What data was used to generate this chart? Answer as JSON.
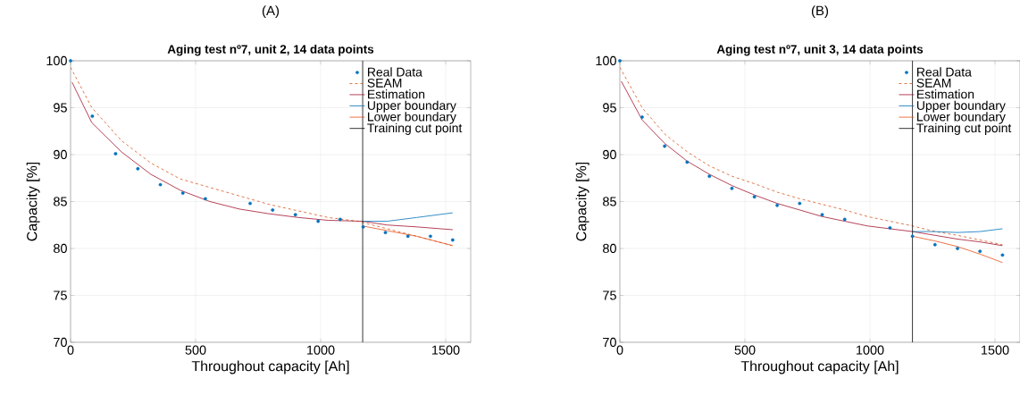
{
  "chart_data": [
    {
      "type": "line",
      "subtitle": "(A)",
      "title": "Aging test nº7, unit 2, 14 data points",
      "xlabel": "Throughout capacity [Ah]",
      "ylabel": "Capacity [%]",
      "xlim": [
        0,
        1600
      ],
      "ylim": [
        70,
        100
      ],
      "xticks": [
        0,
        500,
        1000,
        1500
      ],
      "yticks": [
        70,
        75,
        80,
        85,
        90,
        95,
        100
      ],
      "grid": true,
      "legend": "top right",
      "series": [
        {
          "name": "Real Data",
          "type": "scatter",
          "marker": "circle",
          "color": "#0072bd",
          "x": [
            0,
            87,
            180,
            269,
            359,
            449,
            539,
            718,
            808,
            899,
            990,
            1078,
            1170,
            1259,
            1349,
            1439,
            1528
          ],
          "values": [
            100,
            94.1,
            90.1,
            88.5,
            86.8,
            85.9,
            85.3,
            84.8,
            84.1,
            83.6,
            82.9,
            83.1,
            82.3,
            81.7,
            81.3,
            81.3,
            80.9
          ]
        },
        {
          "name": "SEAM",
          "line_style": "dashed",
          "color": "#d95319",
          "x": [
            0,
            85,
            203,
            321,
            439,
            557,
            675,
            793,
            911,
            1030,
            1148,
            1266,
            1384,
            1528
          ],
          "values": [
            99.3,
            95.0,
            91.5,
            89.1,
            87.4,
            86.5,
            85.6,
            84.7,
            84.0,
            83.3,
            82.9,
            82.1,
            81.3,
            80.3
          ]
        },
        {
          "name": "Estimation",
          "line_style": "solid",
          "color": "#a2142f",
          "x": [
            6,
            85,
            203,
            321,
            439,
            557,
            675,
            793,
            911,
            1030,
            1168,
            1266,
            1384,
            1528
          ],
          "values": [
            97.7,
            93.4,
            90.3,
            87.9,
            86.2,
            85.0,
            84.2,
            83.7,
            83.3,
            83.0,
            82.9,
            82.5,
            82.3,
            82.0
          ]
        },
        {
          "name": "Upper boundary",
          "line_style": "solid",
          "color": "#0072bd",
          "x": [
            1168,
            1266,
            1384,
            1528
          ],
          "values": [
            82.9,
            82.9,
            83.3,
            83.8
          ]
        },
        {
          "name": "Lower boundary",
          "line_style": "solid",
          "color": "#e8501a",
          "x": [
            1168,
            1266,
            1384,
            1528
          ],
          "values": [
            82.4,
            81.9,
            81.3,
            80.3
          ]
        }
      ],
      "ref_lines": [
        {
          "axis": "x",
          "value": 1168,
          "label": "Training cut point",
          "color": "#000000"
        }
      ]
    },
    {
      "type": "line",
      "subtitle": "(B)",
      "title": "Aging test nº7, unit 3, 14 data points",
      "xlabel": "Throughout capacity [Ah]",
      "ylabel": "Capacity [%]",
      "xlim": [
        0,
        1600
      ],
      "ylim": [
        70,
        100
      ],
      "xticks": [
        0,
        500,
        1000,
        1500
      ],
      "yticks": [
        70,
        75,
        80,
        85,
        90,
        95,
        100
      ],
      "grid": true,
      "legend": "top right",
      "series": [
        {
          "name": "Real Data",
          "type": "scatter",
          "marker": "circle",
          "color": "#0072bd",
          "x": [
            0,
            89,
            179,
            269,
            358,
            448,
            538,
            629,
            719,
            809,
            899,
            1080,
            1170,
            1260,
            1350,
            1440,
            1530
          ],
          "values": [
            100,
            94.0,
            90.9,
            89.2,
            87.7,
            86.4,
            85.5,
            84.6,
            84.8,
            83.6,
            83.1,
            82.2,
            81.3,
            80.4,
            80.0,
            79.7,
            79.3
          ]
        },
        {
          "name": "SEAM",
          "line_style": "dashed",
          "color": "#d95319",
          "x": [
            0,
            89,
            179,
            269,
            358,
            448,
            538,
            629,
            719,
            809,
            899,
            990,
            1080,
            1170,
            1260,
            1350,
            1440,
            1530
          ],
          "values": [
            99.3,
            95.0,
            92.2,
            90.3,
            88.8,
            87.7,
            86.9,
            86.0,
            85.3,
            84.7,
            84.1,
            83.4,
            82.9,
            82.4,
            81.8,
            81.4,
            80.9,
            80.4
          ]
        },
        {
          "name": "Estimation",
          "line_style": "solid",
          "color": "#a2142f",
          "x": [
            6,
            89,
            179,
            269,
            358,
            448,
            538,
            629,
            719,
            809,
            899,
            990,
            1080,
            1170,
            1260,
            1350,
            1440,
            1530
          ],
          "values": [
            97.8,
            93.7,
            91.2,
            89.3,
            87.9,
            86.7,
            85.7,
            84.8,
            84.1,
            83.4,
            82.9,
            82.4,
            82.1,
            81.8,
            81.4,
            81.0,
            80.7,
            80.3
          ]
        },
        {
          "name": "Upper boundary",
          "line_style": "solid",
          "color": "#0072bd",
          "x": [
            1170,
            1260,
            1350,
            1440,
            1530
          ],
          "values": [
            81.8,
            81.8,
            81.7,
            81.8,
            82.1
          ]
        },
        {
          "name": "Lower boundary",
          "line_style": "solid",
          "color": "#e8501a",
          "x": [
            1170,
            1260,
            1350,
            1440,
            1530
          ],
          "values": [
            81.3,
            80.8,
            80.2,
            79.4,
            78.5
          ]
        }
      ],
      "ref_lines": [
        {
          "axis": "x",
          "value": 1170,
          "label": "Training cut point",
          "color": "#000000"
        }
      ]
    }
  ]
}
